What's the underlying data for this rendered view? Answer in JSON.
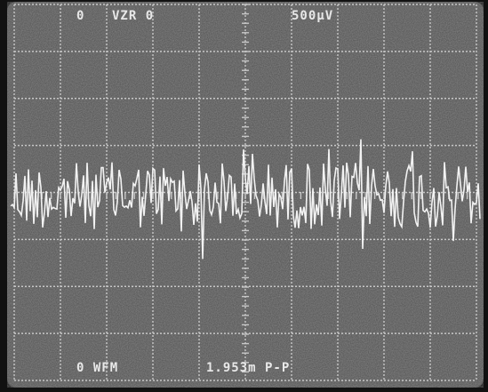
{
  "screen": {
    "top_readout": [
      "0",
      "VZR 0",
      "500μV"
    ],
    "bottom_readout": [
      "0 WFM",
      "1.953m P-P"
    ]
  }
}
